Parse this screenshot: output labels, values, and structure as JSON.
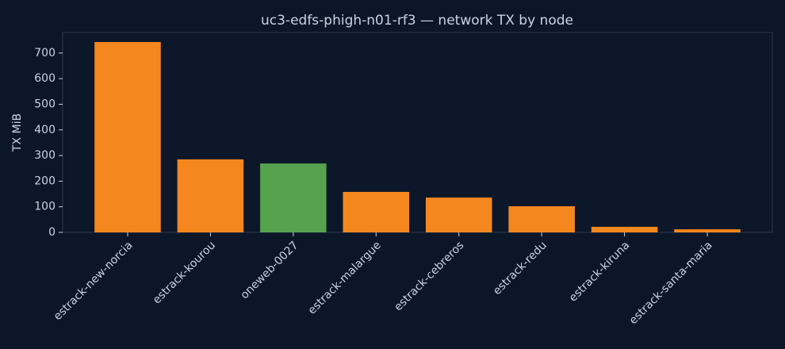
{
  "chart_data": {
    "type": "bar",
    "title": "uc3-edfs-phigh-n01-rf3 — network TX by node",
    "ylabel": "TX MiB",
    "categories": [
      "estrack-new-norcia",
      "estrack-kourou",
      "oneweb-0027",
      "estrack-malargue",
      "estrack-cebreros",
      "estrack-redu",
      "estrack-kiruna",
      "estrack-santa-maria"
    ],
    "values": [
      743,
      285,
      269,
      158,
      136,
      102,
      22,
      12
    ],
    "colors": [
      "#f5871f",
      "#f5871f",
      "#57a24c",
      "#f5871f",
      "#f5871f",
      "#f5871f",
      "#f5871f",
      "#f5871f"
    ],
    "ylim": [
      0,
      780
    ],
    "yticks": [
      0,
      100,
      200,
      300,
      400,
      500,
      600,
      700
    ],
    "grid": false
  }
}
